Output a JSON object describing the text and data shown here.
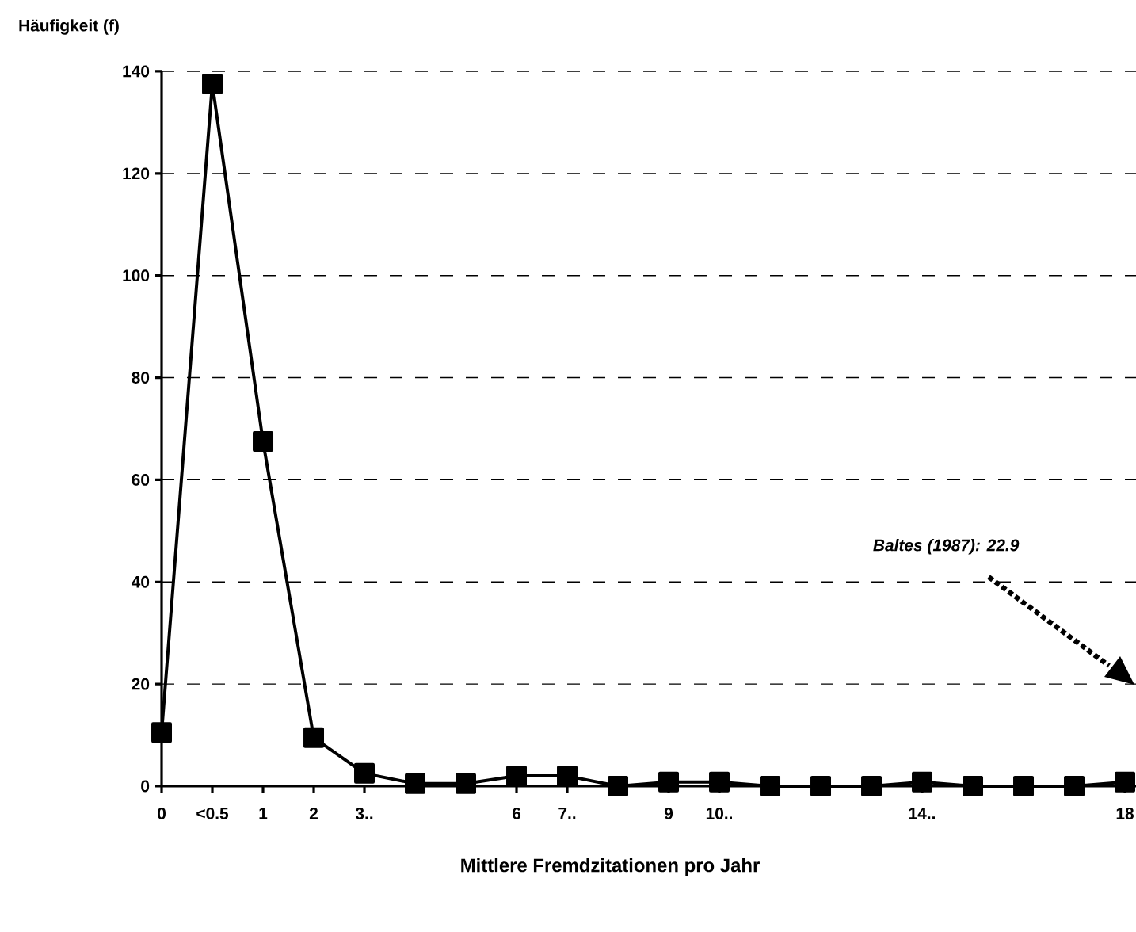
{
  "chart_data": {
    "type": "line",
    "ylabel": "Häufigkeit (f)",
    "xlabel": "Mittlere Fremdzitationen pro Jahr",
    "categories": [
      "0",
      "<0.5",
      "1",
      "2",
      "3..",
      null,
      null,
      "6",
      "7..",
      null,
      "9",
      "10..",
      null,
      null,
      null,
      "14..",
      null,
      null,
      null,
      "18"
    ],
    "series": [
      {
        "color": "#000000",
        "values": [
          10.5,
          137.5,
          67.5,
          9.5,
          2.5,
          0.5,
          0.5,
          2,
          2,
          0,
          0.8,
          0.8,
          0,
          0,
          0,
          0.8,
          0,
          0,
          0,
          0.8
        ]
      }
    ],
    "ylim": [
      0,
      140
    ],
    "yticks": [
      0,
      20,
      40,
      60,
      80,
      100,
      120,
      140
    ],
    "grid": "y",
    "marker": "square",
    "line_style": "solid",
    "annotations": [
      "Baltes (1987): 22.9"
    ]
  }
}
